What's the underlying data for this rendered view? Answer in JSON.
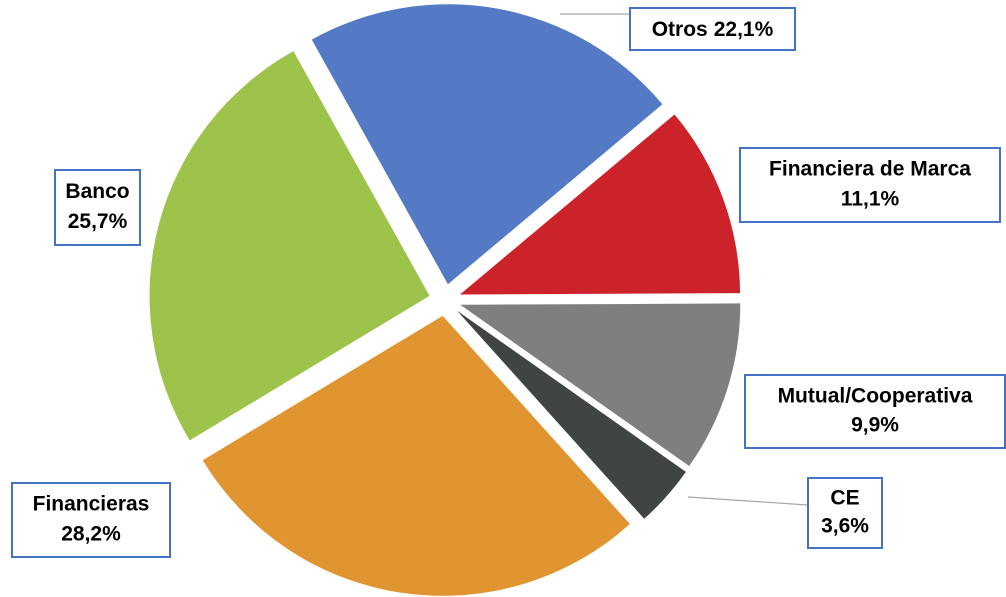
{
  "chart_data": {
    "type": "pie",
    "categories": [
      "Financiera de Marca",
      "Mutual/Cooperativa",
      "CE",
      "Financieras",
      "Banco",
      "Otros"
    ],
    "values": [
      11.1,
      9.9,
      3.6,
      28.2,
      25.7,
      22.1
    ],
    "value_labels": [
      "11,1%",
      "9,9%",
      "3,6%",
      "28,2%",
      "25,7%",
      "22,1%"
    ],
    "colors": [
      "#cc2229",
      "#7f7f7f",
      "#404543",
      "#e09530",
      "#9dc34b",
      "#547ac6"
    ]
  }
}
